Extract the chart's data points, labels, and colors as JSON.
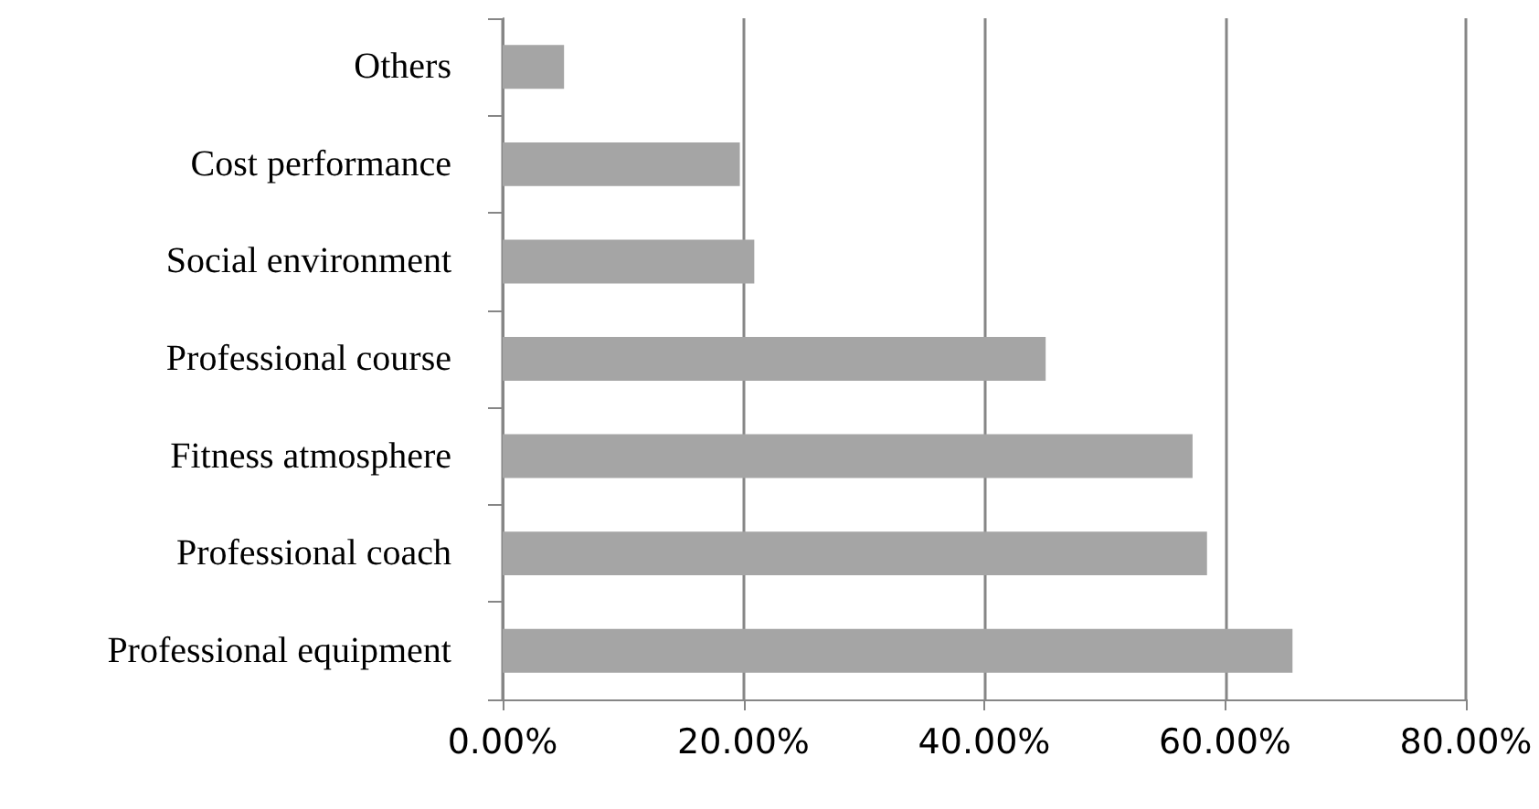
{
  "chart_data": {
    "type": "bar",
    "orientation": "horizontal",
    "categories": [
      "Others",
      "Cost performance",
      "Social environment",
      "Professional course",
      "Fitness atmosphere",
      "Professional coach",
      "Professional equipment"
    ],
    "values": [
      5.1,
      19.7,
      20.9,
      45.1,
      57.3,
      58.5,
      65.6
    ],
    "color": "#a5a5a5",
    "xlim": [
      0,
      80
    ],
    "xticks": [
      {
        "value": 0,
        "label": "0.00%"
      },
      {
        "value": 20,
        "label": "20.00%"
      },
      {
        "value": 40,
        "label": "40.00%"
      },
      {
        "value": 60,
        "label": "60.00%"
      },
      {
        "value": 80,
        "label": "80.00%"
      }
    ],
    "grid": "x"
  }
}
